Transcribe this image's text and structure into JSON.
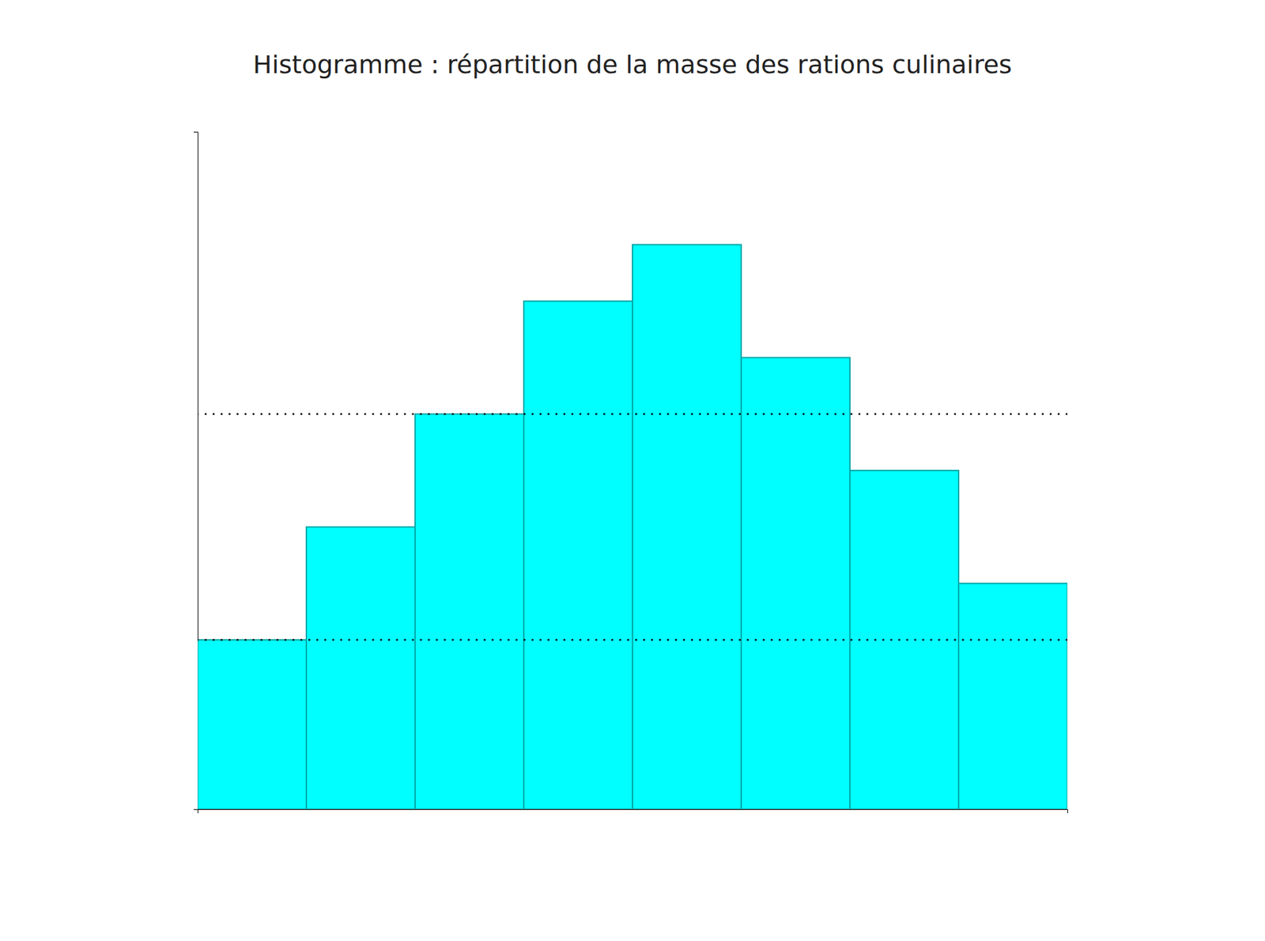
{
  "chart_data": {
    "type": "bar",
    "title": "Histogramme : répartition de la masse des rations culinaires",
    "categories": [
      null,
      null,
      null,
      null,
      null,
      null,
      null,
      null
    ],
    "values": [
      3,
      5,
      7,
      9,
      10,
      8,
      6,
      4
    ],
    "color": "#00FFFF",
    "hlines": [
      7,
      3
    ],
    "ylim": [
      0,
      12
    ],
    "tick_labels": false
  }
}
